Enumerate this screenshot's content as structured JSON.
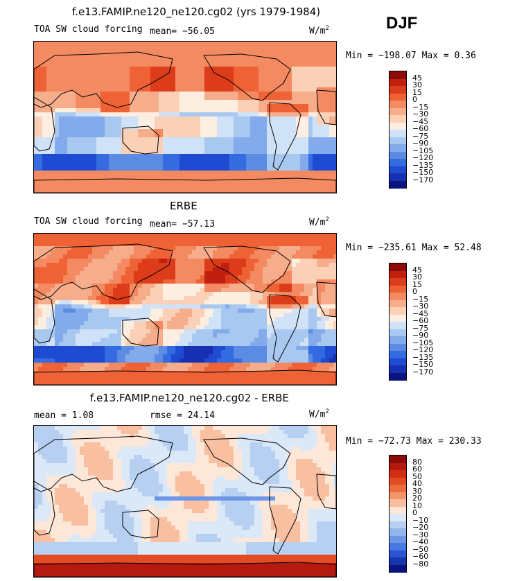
{
  "season": "DJF",
  "chart_data": [
    {
      "type": "heatmap",
      "title": "f.e13.FAMIP.ne120_ne120.cg02 (yrs 1979-1984)",
      "left_label": "TOA SW cloud forcing",
      "mean_label": "mean= −56.05",
      "units": "W/m",
      "units_exp": "2",
      "min_max_label": "Min = −198.07 Max =   0.36",
      "min": -198.07,
      "max": 0.36,
      "mean": -56.05,
      "levels": [
        "45",
        "30",
        "15",
        "0",
        "−15",
        "−30",
        "−45",
        "−60",
        "−75",
        "−90",
        "−105",
        "−120",
        "−135",
        "−150",
        "−170"
      ],
      "colors": [
        "#8b0a0a",
        "#c0200f",
        "#dc3c1a",
        "#ef6236",
        "#f38a61",
        "#f6ad8c",
        "#fad0b7",
        "#fdeee2",
        "#cfe2f7",
        "#a9c8f0",
        "#83aaea",
        "#5c8be3",
        "#356be0",
        "#1f4ad2",
        "#1730b1",
        "#0a1480"
      ],
      "pattern": "model"
    },
    {
      "type": "heatmap",
      "title": "ERBE",
      "left_label": "TOA SW cloud forcing",
      "mean_label": "mean= −57.13",
      "units": "W/m",
      "units_exp": "2",
      "min_max_label": "Min = −235.61 Max =  52.48",
      "min": -235.61,
      "max": 52.48,
      "mean": -57.13,
      "levels": [
        "45",
        "30",
        "15",
        "0",
        "−15",
        "−30",
        "−45",
        "−60",
        "−75",
        "−90",
        "−105",
        "−120",
        "−135",
        "−150",
        "−170"
      ],
      "colors": [
        "#8b0a0a",
        "#c0200f",
        "#dc3c1a",
        "#ef6236",
        "#f38a61",
        "#f6ad8c",
        "#fad0b7",
        "#fdeee2",
        "#cfe2f7",
        "#a9c8f0",
        "#83aaea",
        "#5c8be3",
        "#356be0",
        "#1f4ad2",
        "#1730b1",
        "#0a1480"
      ],
      "pattern": "obs"
    },
    {
      "type": "heatmap",
      "title": "f.e13.FAMIP.ne120_ne120.cg02 - ERBE",
      "mean_label": "mean =   1.08",
      "rmse_label": "rmse =  24.14",
      "units": "W/m",
      "units_exp": "2",
      "min_max_label": "Min = −72.73 Max = 230.33",
      "min": -72.73,
      "max": 230.33,
      "mean": 1.08,
      "rmse": 24.14,
      "levels": [
        "80",
        "60",
        "50",
        "40",
        "30",
        "20",
        "10",
        "0",
        "−10",
        "−20",
        "−30",
        "−40",
        "−50",
        "−60",
        "−80"
      ],
      "colors": [
        "#8b0a0a",
        "#b41a10",
        "#d02f14",
        "#e34c22",
        "#ef6d3c",
        "#f39568",
        "#f8bfa0",
        "#fde7d9",
        "#dbe8f8",
        "#b7d0f2",
        "#92b5ec",
        "#6d97e6",
        "#4877e0",
        "#2855d4",
        "#1535ad",
        "#0a1480"
      ],
      "pattern": "diff"
    }
  ]
}
